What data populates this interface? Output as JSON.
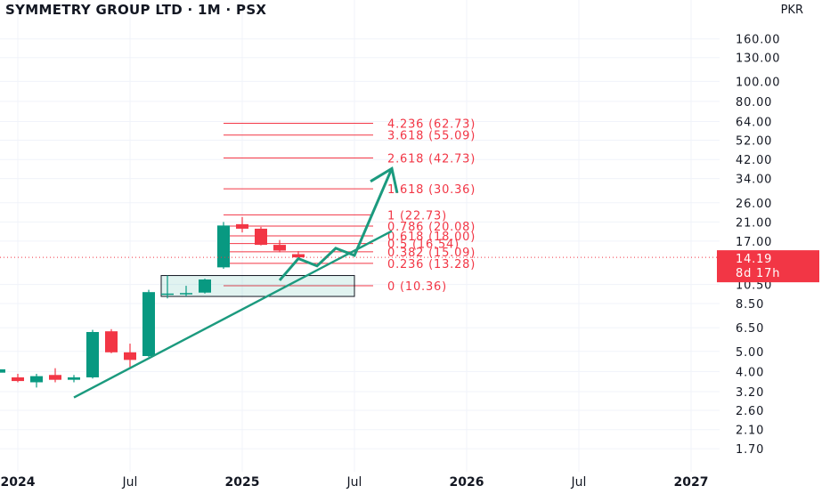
{
  "header": {
    "title": "SYMMETRY GROUP LTD · 1M · PSX",
    "currency": "PKR"
  },
  "colors": {
    "up": "#089981",
    "down": "#f23645",
    "fib": "#f23645",
    "trend": "#1b9a7e",
    "price_tag": "#f23645",
    "grid": "#f0f3fa"
  },
  "chart_data": {
    "type": "candlestick",
    "title": "SYMMETRY GROUP LTD · 1M · PSX",
    "scale": "log",
    "currency": "PKR",
    "y_ticks": [
      160,
      130,
      100,
      80,
      64,
      52,
      42,
      34,
      26,
      21,
      17,
      14.19,
      10.5,
      8.5,
      6.5,
      5,
      4,
      3.2,
      2.6,
      2.1,
      1.7
    ],
    "y_tick_labels": [
      "160.00",
      "130.00",
      "100.00",
      "80.00",
      "64.00",
      "52.00",
      "42.00",
      "34.00",
      "26.00",
      "21.00",
      "17.00",
      "14.19",
      "10.50",
      "8.50",
      "6.50",
      "5.00",
      "4.00",
      "3.20",
      "2.60",
      "2.10",
      "1.70"
    ],
    "x_ticks": [
      {
        "label": "2024",
        "date": "2024-01",
        "bold": true
      },
      {
        "label": "Jul",
        "date": "2024-07",
        "bold": false
      },
      {
        "label": "2025",
        "date": "2025-01",
        "bold": true
      },
      {
        "label": "Jul",
        "date": "2025-07",
        "bold": false
      },
      {
        "label": "2026",
        "date": "2026-01",
        "bold": true
      },
      {
        "label": "Jul",
        "date": "2026-07",
        "bold": false
      },
      {
        "label": "2027",
        "date": "2027-01",
        "bold": true
      }
    ],
    "candles": [
      {
        "date": "2023-12",
        "open": 3.95,
        "high": 4.2,
        "low": 3.75,
        "close": 4.1
      },
      {
        "date": "2024-01",
        "open": 3.75,
        "high": 3.9,
        "low": 3.55,
        "close": 3.6
      },
      {
        "date": "2024-02",
        "open": 3.55,
        "high": 3.9,
        "low": 3.35,
        "close": 3.8
      },
      {
        "date": "2024-03",
        "open": 3.85,
        "high": 4.15,
        "low": 3.55,
        "close": 3.65
      },
      {
        "date": "2024-04",
        "open": 3.65,
        "high": 3.85,
        "low": 3.55,
        "close": 3.75
      },
      {
        "date": "2024-05",
        "open": 3.75,
        "high": 6.35,
        "low": 3.7,
        "close": 6.2
      },
      {
        "date": "2024-06",
        "open": 6.25,
        "high": 6.4,
        "low": 4.9,
        "close": 4.95
      },
      {
        "date": "2024-07",
        "open": 4.95,
        "high": 5.45,
        "low": 4.2,
        "close": 4.55
      },
      {
        "date": "2024-08",
        "open": 4.75,
        "high": 9.9,
        "low": 4.7,
        "close": 9.65
      },
      {
        "date": "2024-09",
        "open": 9.4,
        "high": 11.6,
        "low": 9.0,
        "close": 9.5
      },
      {
        "date": "2024-10",
        "open": 9.5,
        "high": 10.35,
        "low": 9.2,
        "close": 9.55
      },
      {
        "date": "2024-11",
        "open": 9.6,
        "high": 11.2,
        "low": 9.5,
        "close": 11.1
      },
      {
        "date": "2024-12",
        "open": 12.7,
        "high": 21.0,
        "low": 12.5,
        "close": 20.2
      },
      {
        "date": "2025-01",
        "open": 20.5,
        "high": 22.2,
        "low": 18.7,
        "close": 19.5
      },
      {
        "date": "2025-02",
        "open": 19.5,
        "high": 19.9,
        "low": 16.2,
        "close": 16.3
      },
      {
        "date": "2025-03",
        "open": 16.3,
        "high": 17.2,
        "low": 15.0,
        "close": 15.3
      },
      {
        "date": "2025-04",
        "open": 14.7,
        "high": 15.2,
        "low": 13.9,
        "close": 14.19
      }
    ],
    "fibonacci": {
      "start_date": "2024-12",
      "end_date": "2025-08",
      "levels": [
        {
          "ratio": "4.236",
          "value": 62.73,
          "label": "4.236 (62.73)"
        },
        {
          "ratio": "3.618",
          "value": 55.09,
          "label": "3.618 (55.09)"
        },
        {
          "ratio": "2.618",
          "value": 42.73,
          "label": "2.618 (42.73)"
        },
        {
          "ratio": "1.618",
          "value": 30.36,
          "label": "1.618 (30.36)"
        },
        {
          "ratio": "1",
          "value": 22.73,
          "label": "1 (22.73)"
        },
        {
          "ratio": "0.786",
          "value": 20.08,
          "label": "0.786 (20.08)"
        },
        {
          "ratio": "0.618",
          "value": 18.0,
          "label": "0.618 (18.00)"
        },
        {
          "ratio": "0.5",
          "value": 16.54,
          "label": "0.5 (16.54)"
        },
        {
          "ratio": "0.382",
          "value": 15.09,
          "label": "0.382 (15.09)"
        },
        {
          "ratio": "0.236",
          "value": 13.28,
          "label": "0.236 (13.28)"
        },
        {
          "ratio": "0",
          "value": 10.36,
          "label": "0 (10.36)"
        }
      ]
    },
    "support_box": {
      "start_date": "2024-09",
      "end_date": "2025-07",
      "low": 9.2,
      "high": 11.6
    },
    "trendline": [
      {
        "date": "2024-04",
        "value": 3.0
      },
      {
        "date": "2025-09",
        "value": 19.0
      }
    ],
    "projection_arrow": [
      {
        "date": "2025-03",
        "value": 11.0
      },
      {
        "date": "2025-04",
        "value": 14.0
      },
      {
        "date": "2025-05",
        "value": 12.9
      },
      {
        "date": "2025-06",
        "value": 15.7
      },
      {
        "date": "2025-07",
        "value": 14.5
      },
      {
        "date": "2025-09",
        "value": 38.0
      }
    ],
    "current_price": {
      "value": 14.19,
      "label": "14.19",
      "countdown": "8d 17h"
    }
  }
}
